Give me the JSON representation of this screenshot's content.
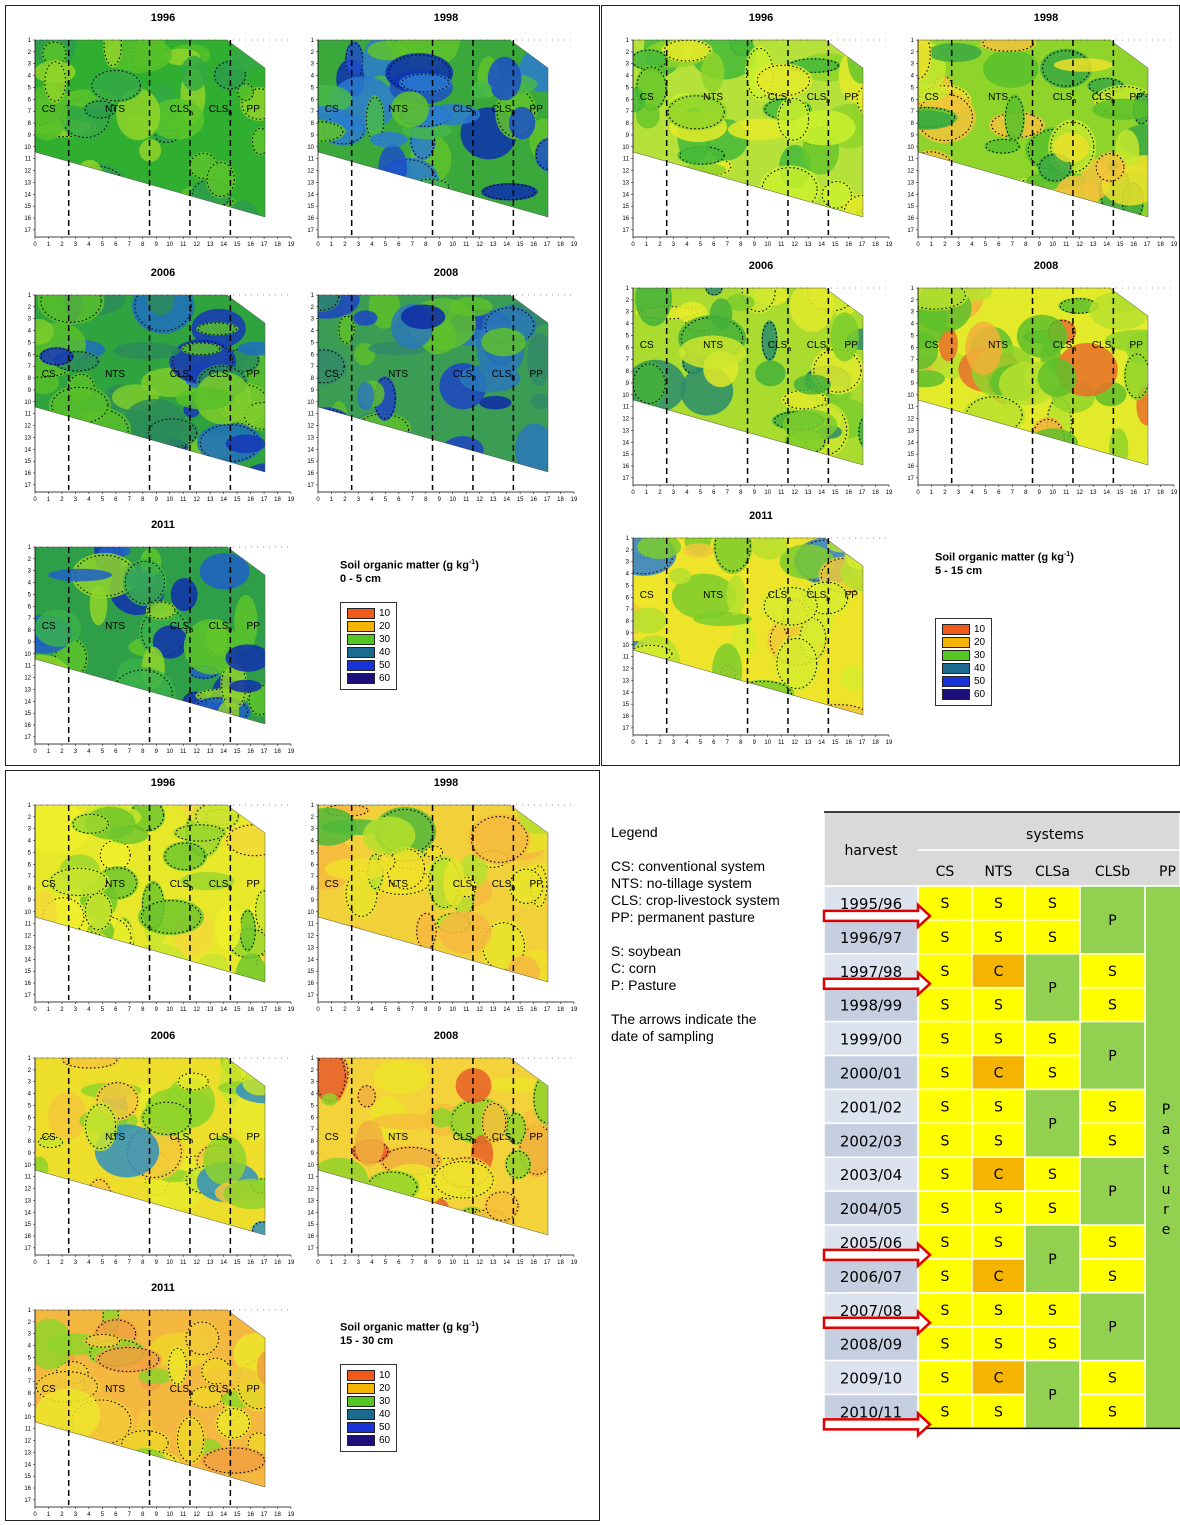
{
  "panels": [
    {
      "id": "depth-0-5",
      "legend": {
        "title": "Soil organic matter (g kg",
        "title_sup": "-1",
        "title_end": ")",
        "depth": "0 - 5 cm"
      },
      "maps": [
        {
          "year": "1996",
          "palette": [
            "#2fae2f",
            "#5cc42a",
            "#33a944",
            "#8fd42a",
            "#56bf2a",
            "#2b9c4c"
          ]
        },
        {
          "year": "1998",
          "palette": [
            "#3aa83a",
            "#1d4fc9",
            "#60c32b",
            "#2a7bd0",
            "#0d2fb0",
            "#47b84a"
          ]
        },
        {
          "year": "2006",
          "palette": [
            "#2fa43e",
            "#58c02a",
            "#1f6fc0",
            "#2c8c5a",
            "#1637b8",
            "#7ccd2b"
          ]
        },
        {
          "year": "2008",
          "palette": [
            "#3b9c54",
            "#1c44c4",
            "#2a78b8",
            "#5ec02c",
            "#0e2aa8",
            "#348a6a"
          ]
        },
        {
          "year": "2011",
          "palette": [
            "#2e9e48",
            "#5cc42b",
            "#1f5fc8",
            "#8fd32a",
            "#0f2fb0",
            "#3ab04a"
          ]
        }
      ]
    },
    {
      "id": "depth-5-15",
      "legend": {
        "title": "Soil organic matter (g kg",
        "title_sup": "-1",
        "title_end": ")",
        "depth": "5 - 15 cm"
      },
      "maps": [
        {
          "year": "1996",
          "palette": [
            "#b6e03a",
            "#8fd42a",
            "#e6ea2a",
            "#66c52c",
            "#caf02e",
            "#44b83a"
          ]
        },
        {
          "year": "1998",
          "palette": [
            "#8fd42a",
            "#ece02a",
            "#f2c23a",
            "#58bf2c",
            "#c7e82e",
            "#3aa842"
          ]
        },
        {
          "year": "2006",
          "palette": [
            "#a9dc2e",
            "#7ccd2b",
            "#e3ea2a",
            "#44b03a",
            "#cde62e",
            "#2a8c6a"
          ]
        },
        {
          "year": "2008",
          "palette": [
            "#e2ea2a",
            "#b8e02e",
            "#f2b03a",
            "#8fd42a",
            "#e8702a",
            "#5ec02c"
          ]
        },
        {
          "year": "2011",
          "palette": [
            "#eee42a",
            "#b6e02e",
            "#f0c83a",
            "#7ccd2b",
            "#d6ec2e",
            "#2f7fd0"
          ]
        }
      ]
    },
    {
      "id": "depth-15-30",
      "legend": {
        "title": "Soil organic matter (g kg",
        "title_sup": "-1",
        "title_end": ")",
        "depth": "15 - 30 cm"
      },
      "maps": [
        {
          "year": "1996",
          "palette": [
            "#e8e82a",
            "#c8e42e",
            "#f2d83a",
            "#9ad62c",
            "#eef02a",
            "#6fc62c"
          ]
        },
        {
          "year": "1998",
          "palette": [
            "#f2d03a",
            "#e8e42a",
            "#f6b840",
            "#b6e02e",
            "#f0e02a",
            "#4fb83a"
          ]
        },
        {
          "year": "2006",
          "palette": [
            "#ecde2a",
            "#c8e42e",
            "#f4c83a",
            "#8fd42a",
            "#eaea2a",
            "#2f8fc0"
          ]
        },
        {
          "year": "2008",
          "palette": [
            "#f4d23a",
            "#f0b040",
            "#ece42a",
            "#e8602a",
            "#f6c03a",
            "#8fd42a"
          ]
        },
        {
          "year": "2011",
          "palette": [
            "#f4b840",
            "#f2c83a",
            "#eed42a",
            "#f0a040",
            "#ece42a",
            "#8fd42a"
          ]
        }
      ]
    }
  ],
  "system_labels": [
    "CS",
    "NTS",
    "CLSa",
    "CLSb",
    "PP"
  ],
  "x_ticks": [
    "0",
    "1",
    "2",
    "3",
    "4",
    "5",
    "6",
    "7",
    "8",
    "9",
    "10",
    "11",
    "12",
    "13",
    "14",
    "15",
    "16",
    "17",
    "18",
    "19"
  ],
  "y_ticks": [
    "1",
    "2",
    "3",
    "4",
    "5",
    "6",
    "7",
    "8",
    "9",
    "10",
    "11",
    "12",
    "13",
    "14",
    "15",
    "16",
    "17"
  ],
  "color_legend": [
    {
      "value": "10",
      "color": "#f25a1c"
    },
    {
      "value": "20",
      "color": "#f5b400"
    },
    {
      "value": "30",
      "color": "#53c71f"
    },
    {
      "value": "40",
      "color": "#1b6b8f"
    },
    {
      "value": "50",
      "color": "#1a33d6"
    },
    {
      "value": "60",
      "color": "#1c0f7a"
    }
  ],
  "text_legend": {
    "heading": "Legend",
    "systems": [
      "CS: conventional system",
      "NTS: no-tillage system",
      "CLS: crop-livestock system",
      "PP: permanent pasture"
    ],
    "crops": [
      "S: soybean",
      "C: corn",
      "P: Pasture"
    ],
    "note_line1": "The arrows indicate the",
    "note_line2": "date of sampling"
  },
  "crop_table": {
    "header_harvest": "harvest",
    "header_systems": "systems",
    "columns": [
      "CS",
      "NTS",
      "CLSa",
      "CLSb",
      "PP"
    ],
    "pasture_text": "Pasture",
    "rows": [
      {
        "harvest": "1995/96",
        "cs": "S",
        "nts": "S",
        "clsa": "S"
      },
      {
        "harvest": "1996/97",
        "cs": "S",
        "nts": "S",
        "clsa": "S"
      },
      {
        "harvest": "1997/98",
        "cs": "S",
        "nts": "C",
        "clsb": "S"
      },
      {
        "harvest": "1998/99",
        "cs": "S",
        "nts": "S",
        "clsb": "S"
      },
      {
        "harvest": "1999/00",
        "cs": "S",
        "nts": "S",
        "clsa": "S"
      },
      {
        "harvest": "2000/01",
        "cs": "S",
        "nts": "C",
        "clsa": "S"
      },
      {
        "harvest": "2001/02",
        "cs": "S",
        "nts": "S",
        "clsb": "S"
      },
      {
        "harvest": "2002/03",
        "cs": "S",
        "nts": "S",
        "clsb": "S"
      },
      {
        "harvest": "2003/04",
        "cs": "S",
        "nts": "C",
        "clsa": "S"
      },
      {
        "harvest": "2004/05",
        "cs": "S",
        "nts": "S",
        "clsa": "S"
      },
      {
        "harvest": "2005/06",
        "cs": "S",
        "nts": "S",
        "clsb": "S"
      },
      {
        "harvest": "2006/07",
        "cs": "S",
        "nts": "C",
        "clsb": "S"
      },
      {
        "harvest": "2007/08",
        "cs": "S",
        "nts": "S",
        "clsa": "S"
      },
      {
        "harvest": "2008/09",
        "cs": "S",
        "nts": "S",
        "clsa": "S"
      },
      {
        "harvest": "2009/10",
        "cs": "S",
        "nts": "C",
        "clsb": "S"
      },
      {
        "harvest": "2010/11",
        "cs": "S",
        "nts": "S",
        "clsb": "S"
      }
    ],
    "pasture_blocks": [
      {
        "column": "clsb",
        "rows": [
          0,
          1
        ],
        "label": "P"
      },
      {
        "column": "clsa",
        "rows": [
          2,
          3
        ],
        "label": "P"
      },
      {
        "column": "clsb",
        "rows": [
          4,
          5
        ],
        "label": "P"
      },
      {
        "column": "clsa",
        "rows": [
          6,
          7
        ],
        "label": "P"
      },
      {
        "column": "clsb",
        "rows": [
          8,
          9
        ],
        "label": "P"
      },
      {
        "column": "clsa",
        "rows": [
          10,
          11
        ],
        "label": "P"
      },
      {
        "column": "clsb",
        "rows": [
          12,
          13
        ],
        "label": "P"
      },
      {
        "column": "clsa",
        "rows": [
          14,
          15
        ],
        "label": "P"
      }
    ],
    "sampling_arrows_after_rows": [
      0,
      2,
      10,
      12,
      15
    ],
    "colors": {
      "soybean": "#ffff00",
      "corn": "#f4b400",
      "pasture": "#92d050",
      "harvest_light": "#dde3ee",
      "harvest_dark": "#c5cfe0",
      "header": "#d9d9d9"
    }
  },
  "chart_data": {
    "type": "heatmap",
    "variable": "Soil organic matter (g kg-1)",
    "depths": [
      "0 - 5 cm",
      "5 - 15 cm",
      "15 - 30 cm"
    ],
    "years": [
      "1996",
      "1998",
      "2006",
      "2008",
      "2011"
    ],
    "systems": [
      "CS",
      "NTS",
      "CLSa",
      "CLSb",
      "PP"
    ],
    "color_scale_levels": [
      10,
      20,
      30,
      40,
      50,
      60
    ],
    "xlim": [
      0,
      19
    ],
    "ylim": [
      1,
      17
    ],
    "grid": false
  }
}
